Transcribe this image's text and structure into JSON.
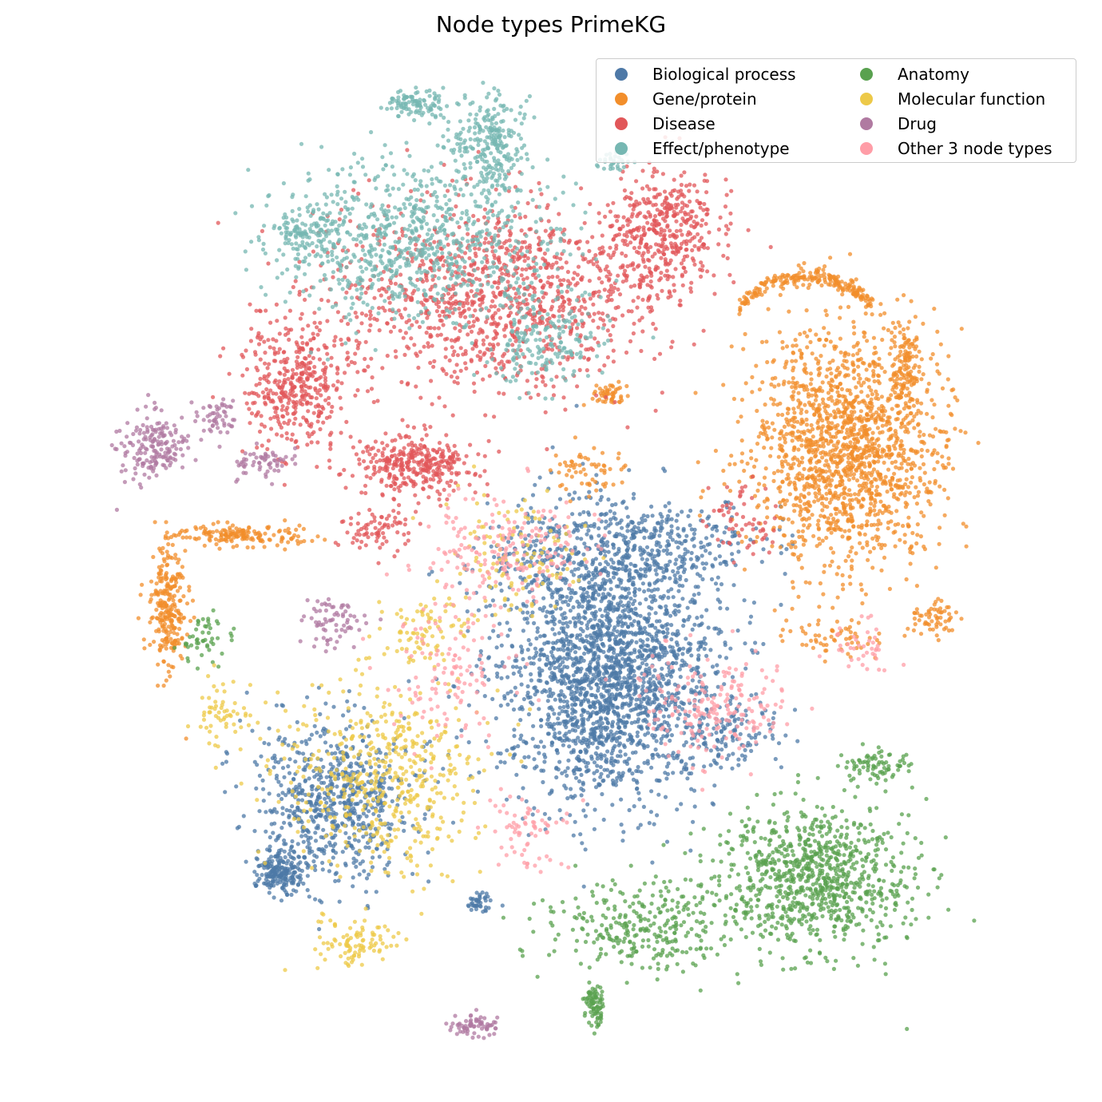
{
  "chart_data": {
    "type": "scatter",
    "title": "Node types PrimeKG",
    "xlabel": "",
    "ylabel": "",
    "axes_visible": false,
    "grid": false,
    "legend_placement": "top-right",
    "legend_columns": 2,
    "series": [
      {
        "name": "Biological process",
        "color": "#4e79a7",
        "clusters": [
          {
            "center": [
              760,
              840
            ],
            "spread": [
              120,
              150
            ],
            "n": 2200
          },
          {
            "center": [
              780,
              690
            ],
            "spread": [
              150,
              60
            ],
            "n": 500
          },
          {
            "center": [
              420,
              1000
            ],
            "spread": [
              90,
              90
            ],
            "n": 700
          },
          {
            "center": [
              350,
              1090
            ],
            "spread": [
              25,
              25
            ],
            "n": 200
          },
          {
            "center": [
              600,
              1130
            ],
            "spread": [
              15,
              10
            ],
            "n": 40
          },
          {
            "center": [
              920,
              920
            ],
            "spread": [
              60,
              40
            ],
            "n": 120
          }
        ]
      },
      {
        "name": "Gene/protein",
        "color": "#f28e2b",
        "clusters": [
          {
            "center": [
              1060,
              560
            ],
            "spread": [
              110,
              130
            ],
            "n": 1600
          },
          {
            "center": [
              1010,
              345
            ],
            "spread": [
              85,
              14
            ],
            "n": 220,
            "arc": true
          },
          {
            "center": [
              1135,
              460
            ],
            "spread": [
              18,
              60
            ],
            "n": 120
          },
          {
            "center": [
              300,
              670
            ],
            "spread": [
              70,
              12
            ],
            "n": 160
          },
          {
            "center": [
              210,
              760
            ],
            "spread": [
              22,
              70
            ],
            "n": 260
          },
          {
            "center": [
              760,
              492
            ],
            "spread": [
              25,
              12
            ],
            "n": 50
          },
          {
            "center": [
              1170,
              775
            ],
            "spread": [
              25,
              20
            ],
            "n": 60
          },
          {
            "center": [
              1040,
              800
            ],
            "spread": [
              50,
              20
            ],
            "n": 60
          },
          {
            "center": [
              740,
              590
            ],
            "spread": [
              40,
              30
            ],
            "n": 60
          }
        ]
      },
      {
        "name": "Disease",
        "color": "#e15759",
        "clusters": [
          {
            "center": [
              620,
              370
            ],
            "spread": [
              190,
              110
            ],
            "n": 1200
          },
          {
            "center": [
              830,
              290
            ],
            "spread": [
              60,
              70
            ],
            "n": 400
          },
          {
            "center": [
              370,
              480
            ],
            "spread": [
              60,
              70
            ],
            "n": 400
          },
          {
            "center": [
              520,
              580
            ],
            "spread": [
              70,
              35
            ],
            "n": 350
          },
          {
            "center": [
              470,
              660
            ],
            "spread": [
              40,
              30
            ],
            "n": 80
          },
          {
            "center": [
              930,
              650
            ],
            "spread": [
              40,
              40
            ],
            "n": 60
          }
        ]
      },
      {
        "name": "Effect/phenotype",
        "color": "#76b7b2",
        "clusters": [
          {
            "center": [
              520,
              300
            ],
            "spread": [
              160,
              90
            ],
            "n": 800
          },
          {
            "center": [
              615,
              180
            ],
            "spread": [
              45,
              60
            ],
            "n": 250
          },
          {
            "center": [
              520,
              130
            ],
            "spread": [
              35,
              15
            ],
            "n": 100
          },
          {
            "center": [
              380,
              290
            ],
            "spread": [
              40,
              30
            ],
            "n": 120
          },
          {
            "center": [
              680,
              420
            ],
            "spread": [
              70,
              60
            ],
            "n": 200
          },
          {
            "center": [
              770,
              205
            ],
            "spread": [
              20,
              12
            ],
            "n": 30
          }
        ]
      },
      {
        "name": "Anatomy",
        "color": "#59a14f",
        "clusters": [
          {
            "center": [
              1020,
              1100
            ],
            "spread": [
              110,
              80
            ],
            "n": 900
          },
          {
            "center": [
              800,
              1160
            ],
            "spread": [
              110,
              50
            ],
            "n": 300
          },
          {
            "center": [
              1100,
              960
            ],
            "spread": [
              40,
              20
            ],
            "n": 80
          },
          {
            "center": [
              745,
              1260
            ],
            "spread": [
              10,
              25
            ],
            "n": 80
          },
          {
            "center": [
              260,
              800
            ],
            "spread": [
              30,
              30
            ],
            "n": 50
          }
        ]
      },
      {
        "name": "Molecular function",
        "color": "#edc948",
        "clusters": [
          {
            "center": [
              480,
              970
            ],
            "spread": [
              110,
              110
            ],
            "n": 500
          },
          {
            "center": [
              450,
              1180
            ],
            "spread": [
              50,
              30
            ],
            "n": 100
          },
          {
            "center": [
              280,
              900
            ],
            "spread": [
              35,
              45
            ],
            "n": 60
          },
          {
            "center": [
              640,
              700
            ],
            "spread": [
              80,
              70
            ],
            "n": 120
          },
          {
            "center": [
              530,
              790
            ],
            "spread": [
              50,
              40
            ],
            "n": 80
          }
        ]
      },
      {
        "name": "Drug",
        "color": "#b07aa1",
        "clusters": [
          {
            "center": [
              190,
              560
            ],
            "spread": [
              40,
              40
            ],
            "n": 180
          },
          {
            "center": [
              270,
              520
            ],
            "spread": [
              25,
              20
            ],
            "n": 50
          },
          {
            "center": [
              330,
              580
            ],
            "spread": [
              30,
              20
            ],
            "n": 60
          },
          {
            "center": [
              595,
              1285
            ],
            "spread": [
              30,
              12
            ],
            "n": 70
          },
          {
            "center": [
              420,
              780
            ],
            "spread": [
              40,
              30
            ],
            "n": 70
          }
        ]
      },
      {
        "name": "Other 3 node types",
        "color": "#ff9da7",
        "clusters": [
          {
            "center": [
              630,
              690
            ],
            "spread": [
              90,
              60
            ],
            "n": 200
          },
          {
            "center": [
              900,
              880
            ],
            "spread": [
              90,
              60
            ],
            "n": 200
          },
          {
            "center": [
              560,
              850
            ],
            "spread": [
              70,
              80
            ],
            "n": 120
          },
          {
            "center": [
              660,
              1040
            ],
            "spread": [
              40,
              40
            ],
            "n": 70
          },
          {
            "center": [
              1080,
              810
            ],
            "spread": [
              40,
              30
            ],
            "n": 40
          }
        ]
      }
    ]
  }
}
